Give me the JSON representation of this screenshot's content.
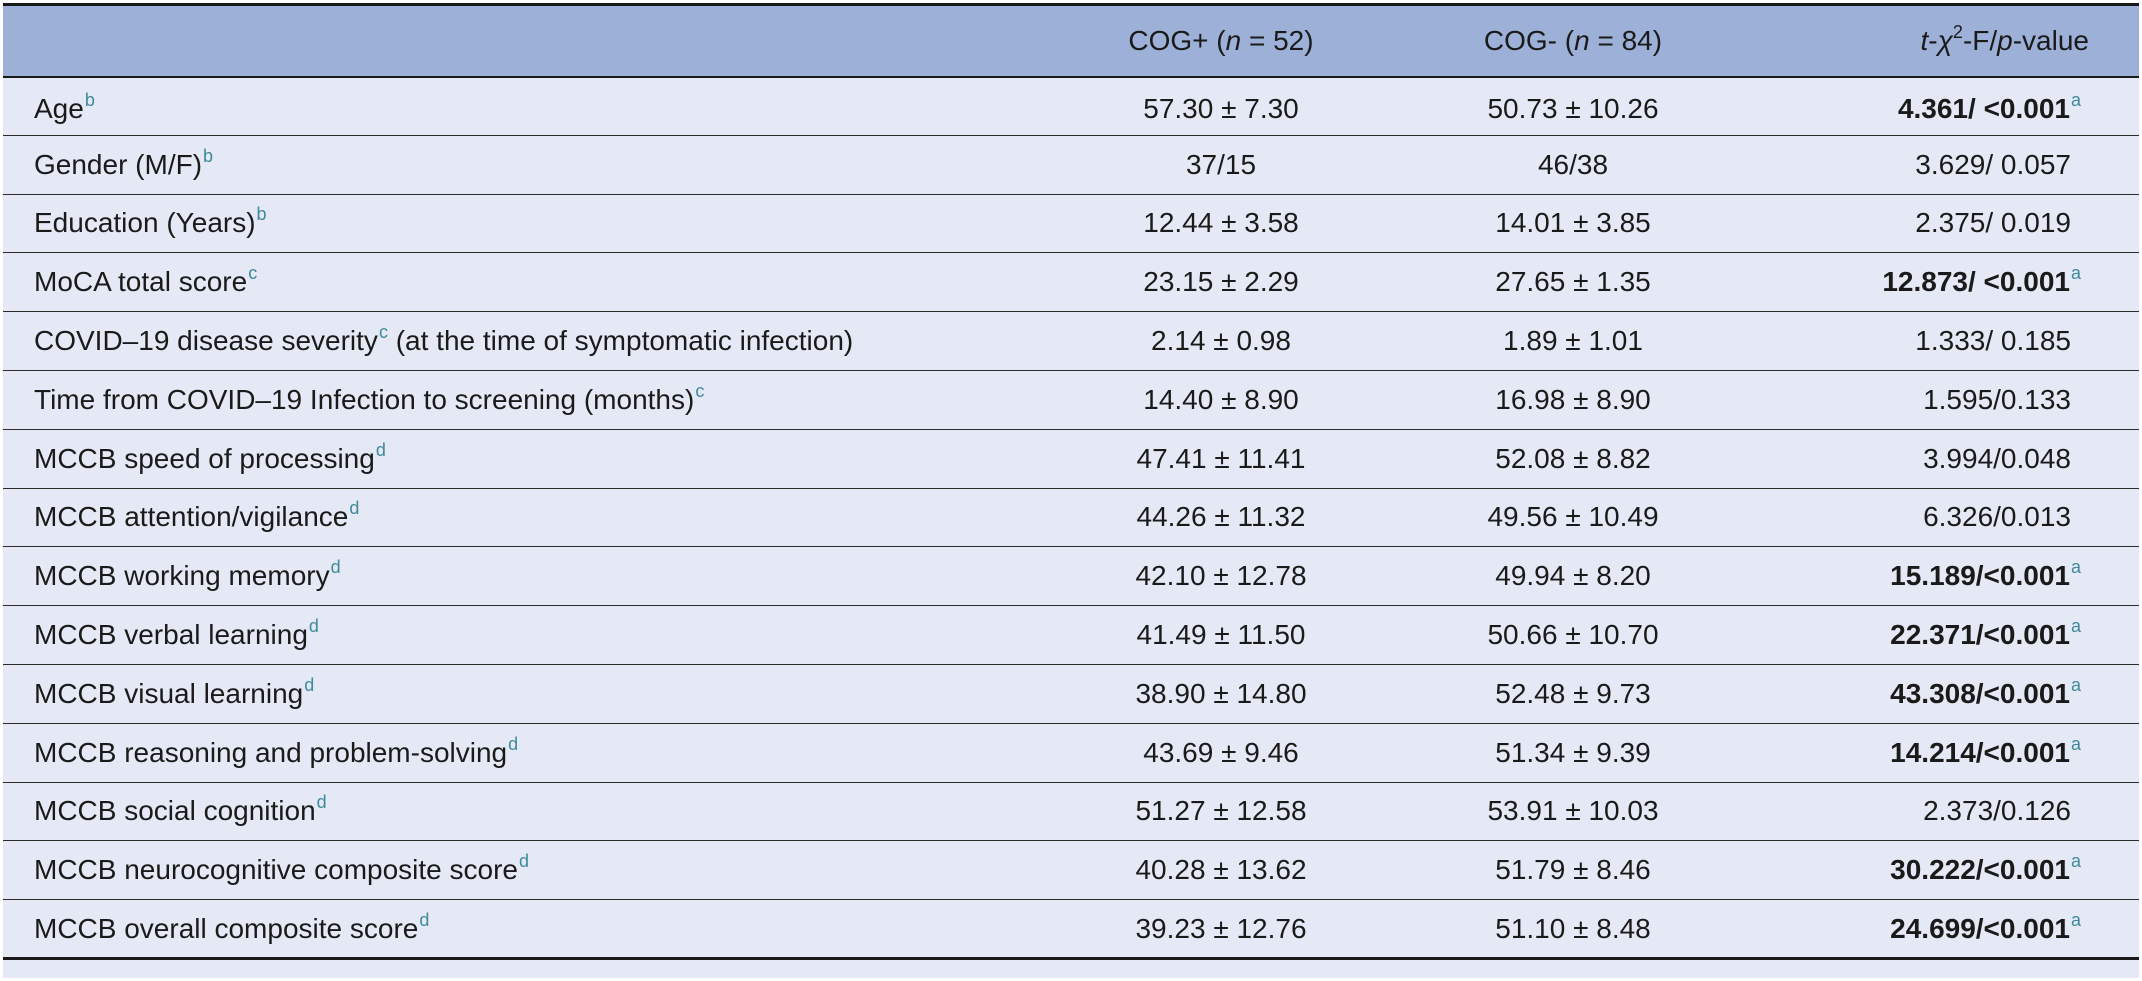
{
  "header": {
    "col1": "",
    "col2": {
      "prefix": "COG+ (",
      "var": "n",
      "suffix": " = 52)"
    },
    "col3": {
      "prefix": "COG- (",
      "var": "n",
      "suffix": " = 84)"
    },
    "col4": {
      "t": "t",
      "dash1": "-",
      "chi": "χ",
      "sq": "2",
      "mid": "-F/",
      "p": "p",
      "tail": "-value"
    }
  },
  "rows": [
    {
      "label": "Age",
      "sup": "b",
      "cog_pos": "57.30 ± 7.30",
      "cog_neg": "50.73 ± 10.26",
      "stat": "4.361/ <0.001",
      "stat_sup": "a",
      "bold": true
    },
    {
      "label": "Gender (M/F)",
      "sup": "b",
      "cog_pos": "37/15",
      "cog_neg": "46/38",
      "stat": "3.629/ 0.057",
      "stat_sup": "",
      "bold": false
    },
    {
      "label": "Education (Years)",
      "sup": "b",
      "cog_pos": "12.44 ± 3.58",
      "cog_neg": "14.01 ± 3.85",
      "stat": "2.375/ 0.019",
      "stat_sup": "",
      "bold": false
    },
    {
      "label": "MoCA total score",
      "sup": "c",
      "cog_pos": "23.15 ± 2.29",
      "cog_neg": "27.65 ± 1.35",
      "stat": "12.873/ <0.001",
      "stat_sup": "a",
      "bold": true
    },
    {
      "label": "COVID–19 disease severity",
      "sup": "c",
      "label_tail": " (at the time of symptomatic infection)",
      "cog_pos": "2.14 ± 0.98",
      "cog_neg": "1.89 ± 1.01",
      "stat": "1.333/ 0.185",
      "stat_sup": "",
      "bold": false
    },
    {
      "label": "Time from COVID–19 Infection to screening (months)",
      "sup": "c",
      "cog_pos": "14.40 ± 8.90",
      "cog_neg": "16.98 ± 8.90",
      "stat": "1.595/0.133",
      "stat_sup": "",
      "bold": false
    },
    {
      "label": "MCCB speed of processing",
      "sup": "d",
      "cog_pos": "47.41 ± 11.41",
      "cog_neg": "52.08 ± 8.82",
      "stat": "3.994/0.048",
      "stat_sup": "",
      "bold": false
    },
    {
      "label": "MCCB attention/vigilance",
      "sup": "d",
      "cog_pos": "44.26 ± 11.32",
      "cog_neg": "49.56 ± 10.49",
      "stat": "6.326/0.013",
      "stat_sup": "",
      "bold": false
    },
    {
      "label": "MCCB working memory",
      "sup": "d",
      "cog_pos": "42.10 ± 12.78",
      "cog_neg": "49.94 ± 8.20",
      "stat": "15.189/<0.001",
      "stat_sup": "a",
      "bold": true
    },
    {
      "label": "MCCB verbal learning",
      "sup": "d",
      "cog_pos": "41.49 ± 11.50",
      "cog_neg": "50.66 ± 10.70",
      "stat": "22.371/<0.001",
      "stat_sup": "a",
      "bold": true
    },
    {
      "label": "MCCB visual learning",
      "sup": "d",
      "cog_pos": "38.90 ± 14.80",
      "cog_neg": "52.48 ± 9.73",
      "stat": "43.308/<0.001",
      "stat_sup": "a",
      "bold": true
    },
    {
      "label": "MCCB reasoning and problem-solving",
      "sup": "d",
      "cog_pos": "43.69 ± 9.46",
      "cog_neg": "51.34 ± 9.39",
      "stat": "14.214/<0.001",
      "stat_sup": "a",
      "bold": true
    },
    {
      "label": "MCCB social cognition",
      "sup": "d",
      "cog_pos": "51.27 ± 12.58",
      "cog_neg": "53.91 ± 10.03",
      "stat": "2.373/0.126",
      "stat_sup": "",
      "bold": false
    },
    {
      "label": "MCCB neurocognitive composite score",
      "sup": "d",
      "cog_pos": "40.28 ± 13.62",
      "cog_neg": "51.79 ± 8.46",
      "stat": "30.222/<0.001",
      "stat_sup": "a",
      "bold": true
    },
    {
      "label": "MCCB overall composite score",
      "sup": "d",
      "cog_pos": "39.23 ± 12.76",
      "cog_neg": "51.10 ± 8.48",
      "stat": "24.699/<0.001",
      "stat_sup": "a",
      "bold": true
    }
  ],
  "colors": {
    "header_bg": "#9db0d8",
    "body_bg": "#e4e9f5",
    "footnote": "#3e8a9a"
  }
}
